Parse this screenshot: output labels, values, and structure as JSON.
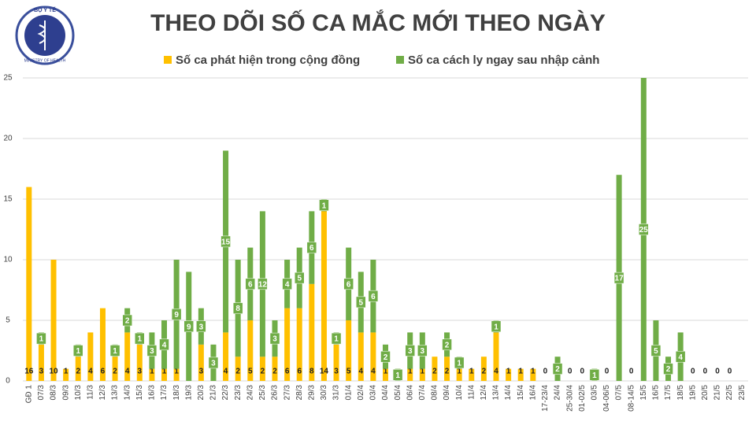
{
  "logo": {
    "top_text": "BỘ Y TẾ",
    "bottom_text": "MINISTRY OF HEALTH"
  },
  "chart_data": {
    "type": "stacked_bar",
    "title": "THEO DÕI SỐ CA MẮC MỚI THEO NGÀY",
    "categories": [
      "GĐ 1",
      "07/3",
      "08/3",
      "09/3",
      "10/3",
      "11/3",
      "12/3",
      "13/3",
      "14/3",
      "15/3",
      "16/3",
      "17/3",
      "18/3",
      "19/3",
      "20/3",
      "21/3",
      "22/3",
      "23/3",
      "24/3",
      "25/3",
      "26/3",
      "27/3",
      "28/3",
      "29/3",
      "30/3",
      "31/3",
      "01/4",
      "02/4",
      "03/4",
      "04/4",
      "05/4",
      "06/4",
      "07/4",
      "08/4",
      "09/4",
      "10/4",
      "11/4",
      "12/4",
      "13/4",
      "14/4",
      "15/4",
      "16/4",
      "17-23/4",
      "24/4",
      "25-30/4",
      "01-02/5",
      "03/5",
      "04-06/5",
      "07/5",
      "08-14/5",
      "15/5",
      "16/5",
      "17/5",
      "18/5",
      "19/5",
      "20/5",
      "21/5",
      "22/5",
      "23/5"
    ],
    "series": [
      {
        "name": "Số ca phát hiện trong cộng đồng",
        "color": "#ffc000",
        "values": [
          16,
          3,
          10,
          1,
          2,
          4,
          6,
          2,
          4,
          3,
          1,
          1,
          1,
          null,
          3,
          null,
          4,
          2,
          5,
          2,
          2,
          6,
          6,
          8,
          14,
          3,
          5,
          4,
          4,
          1,
          null,
          1,
          1,
          2,
          2,
          1,
          1,
          2,
          4,
          1,
          1,
          1,
          0,
          null,
          0,
          0,
          null,
          0,
          null,
          0,
          null,
          null,
          null,
          null,
          0,
          0,
          0,
          0,
          null
        ]
      },
      {
        "name": "Số ca cách ly ngay sau nhập cảnh",
        "color": "#70ad47",
        "values": [
          null,
          1,
          null,
          null,
          1,
          null,
          null,
          1,
          2,
          1,
          3,
          4,
          9,
          9,
          3,
          3,
          15,
          8,
          6,
          12,
          3,
          4,
          5,
          6,
          1,
          1,
          6,
          5,
          6,
          2,
          1,
          3,
          3,
          null,
          2,
          1,
          null,
          null,
          1,
          null,
          null,
          null,
          null,
          2,
          null,
          null,
          1,
          null,
          17,
          null,
          25,
          5,
          2,
          4,
          null,
          null,
          null,
          null,
          null
        ]
      }
    ],
    "ylim": [
      0,
      25
    ],
    "yticks": [
      0,
      5,
      10,
      15,
      20,
      25
    ],
    "grid": true
  }
}
